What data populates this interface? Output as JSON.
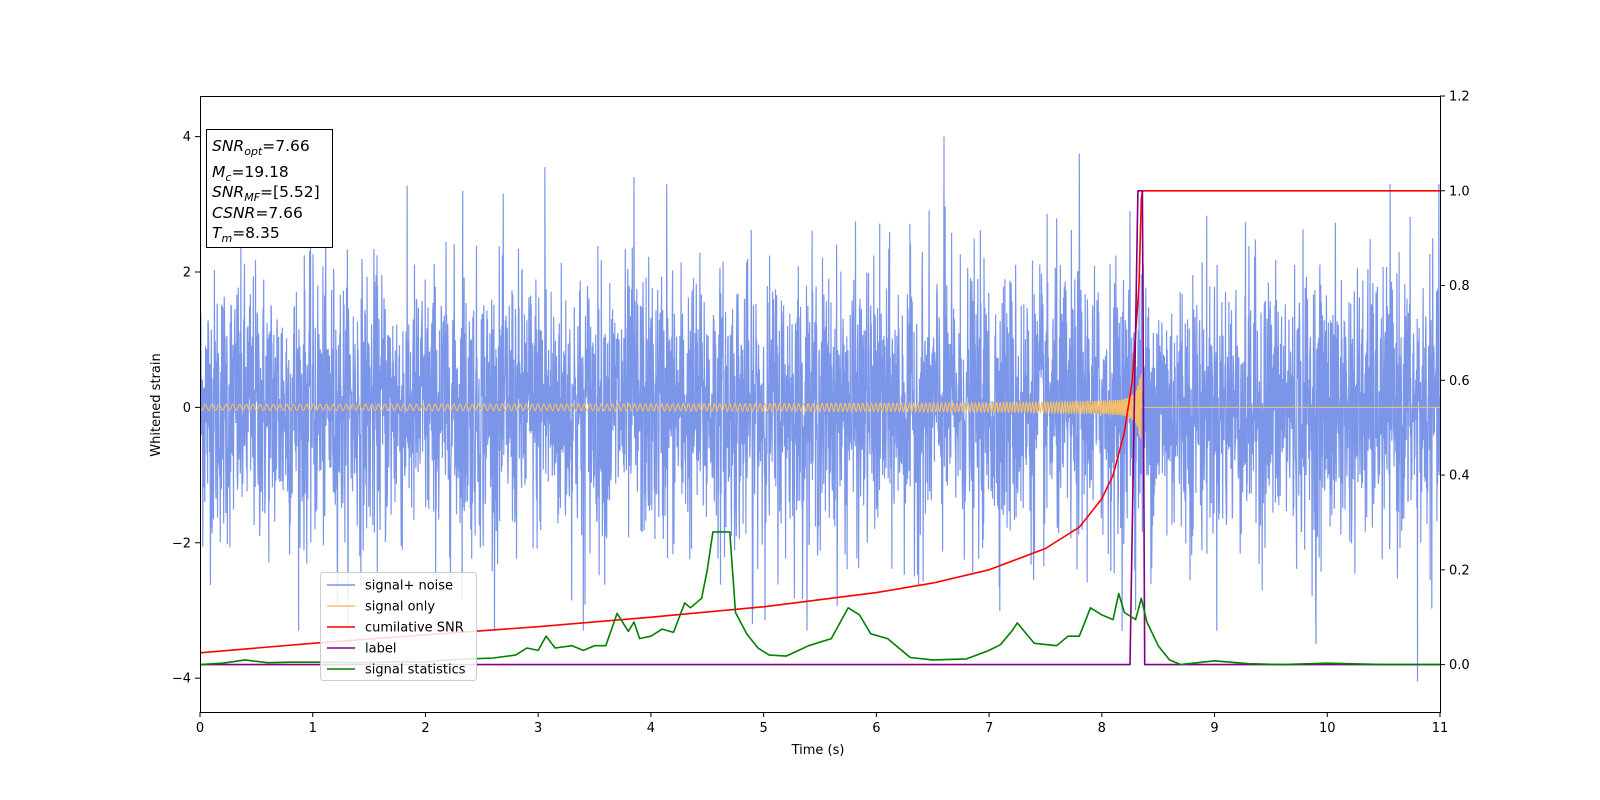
{
  "chart_data": {
    "type": "line",
    "title": "",
    "xlabel": "Time (s)",
    "ylabel": "Whitened strain",
    "xlim": [
      0,
      11
    ],
    "ylim": [
      -4.5,
      4.6
    ],
    "y2lim": [
      -0.1,
      1.2
    ],
    "xticks": [
      "0",
      "1",
      "2",
      "3",
      "4",
      "5",
      "6",
      "7",
      "8",
      "9",
      "10",
      "11"
    ],
    "yticks": [
      "4",
      "2",
      "0",
      "−2",
      "−4"
    ],
    "yticks_values": [
      4,
      2,
      0,
      -2,
      -4
    ],
    "y2ticks": [
      "1.2",
      "1.0",
      "0.8",
      "0.6",
      "0.4",
      "0.2",
      "0.0"
    ],
    "y2ticks_values": [
      1.2,
      1.0,
      0.8,
      0.6,
      0.4,
      0.2,
      0.0
    ],
    "grid": false,
    "legend_position": "lower left",
    "info_box": {
      "snr_opt_main": "SNR",
      "snr_opt_sub": "opt",
      "snr_opt_val": "=7.66",
      "mc_main": "M",
      "mc_sub": "c",
      "mc_val": "=19.18",
      "snr_mf_main": "SNR",
      "snr_mf_sub": "MF",
      "snr_mf_val": "=[5.52]",
      "csnr_main": "CSNR",
      "csnr_val": "=7.66",
      "tm_main": "T",
      "tm_sub": "m",
      "tm_val": "=8.35"
    },
    "noise_series": {
      "name": "signal+ noise",
      "color": "#7b96e8",
      "axis": "left",
      "description_values": {
        "approx_sigma": 1.0,
        "typical_range": [
          -3.0,
          3.0
        ],
        "min": -4.05,
        "max": 4.0
      },
      "spikes": [
        {
          "x": 3.06,
          "y": 3.55
        },
        {
          "x": 3.85,
          "y": 3.4
        },
        {
          "x": 4.14,
          "y": 3.3
        },
        {
          "x": 6.6,
          "y": 4.0
        },
        {
          "x": 7.8,
          "y": 3.75
        },
        {
          "x": 2.33,
          "y": 3.2
        },
        {
          "x": 3.4,
          "y": -3.3
        },
        {
          "x": 10.8,
          "y": -4.05
        },
        {
          "x": 9.9,
          "y": -3.5
        },
        {
          "x": 4.9,
          "y": -3.2
        },
        {
          "x": 8.25,
          "y": 2.9
        },
        {
          "x": 8.3,
          "y": -3.0
        }
      ]
    },
    "signal_series": {
      "name": "signal only",
      "color": "#f5bf6a",
      "axis": "left",
      "chirp_end_time": 8.35,
      "peak_amplitude": 0.5
    },
    "series": [
      {
        "name": "cumilative SNR",
        "color": "#ff0000",
        "axis": "right",
        "x": [
          0,
          1,
          2,
          3,
          4,
          5,
          6,
          6.5,
          7,
          7.5,
          7.8,
          8.0,
          8.1,
          8.2,
          8.27,
          8.33,
          8.35,
          8.36,
          11
        ],
        "y": [
          0.025,
          0.045,
          0.063,
          0.08,
          0.1,
          0.122,
          0.152,
          0.172,
          0.2,
          0.245,
          0.29,
          0.35,
          0.4,
          0.49,
          0.6,
          0.8,
          0.98,
          1.0,
          1.0
        ]
      },
      {
        "name": "label",
        "color": "#800080",
        "axis": "right",
        "x": [
          0,
          8.25,
          8.32,
          8.36,
          8.38,
          11
        ],
        "y": [
          0,
          0,
          1.0,
          1.0,
          0,
          0
        ]
      },
      {
        "name": "signal statistics",
        "color": "#008000",
        "axis": "right",
        "x": [
          0,
          0.2,
          0.4,
          0.6,
          0.8,
          1.0,
          1.2,
          1.4,
          1.6,
          1.8,
          2.0,
          2.2,
          2.4,
          2.6,
          2.8,
          2.9,
          3.0,
          3.07,
          3.15,
          3.3,
          3.4,
          3.5,
          3.6,
          3.7,
          3.8,
          3.85,
          3.9,
          4.0,
          4.1,
          4.2,
          4.3,
          4.35,
          4.45,
          4.5,
          4.55,
          4.6,
          4.65,
          4.7,
          4.75,
          4.85,
          4.95,
          5.05,
          5.2,
          5.4,
          5.6,
          5.75,
          5.85,
          5.95,
          6.1,
          6.3,
          6.5,
          6.8,
          7.0,
          7.1,
          7.2,
          7.25,
          7.4,
          7.6,
          7.7,
          7.8,
          7.9,
          8.0,
          8.1,
          8.15,
          8.2,
          8.3,
          8.35,
          8.4,
          8.5,
          8.6,
          8.7,
          9.0,
          9.3,
          9.6,
          10.0,
          10.5,
          11.0
        ],
        "y": [
          0.0,
          0.003,
          0.01,
          0.004,
          0.005,
          0.005,
          0.005,
          0.004,
          0.005,
          0.006,
          0.005,
          0.01,
          0.012,
          0.014,
          0.02,
          0.035,
          0.03,
          0.06,
          0.035,
          0.04,
          0.03,
          0.04,
          0.04,
          0.108,
          0.07,
          0.09,
          0.055,
          0.06,
          0.075,
          0.068,
          0.13,
          0.12,
          0.14,
          0.2,
          0.28,
          0.28,
          0.28,
          0.28,
          0.11,
          0.065,
          0.035,
          0.02,
          0.018,
          0.04,
          0.055,
          0.12,
          0.105,
          0.065,
          0.055,
          0.015,
          0.01,
          0.012,
          0.03,
          0.042,
          0.07,
          0.088,
          0.045,
          0.04,
          0.06,
          0.06,
          0.12,
          0.105,
          0.095,
          0.15,
          0.11,
          0.095,
          0.14,
          0.09,
          0.04,
          0.01,
          0.0,
          0.008,
          0.002,
          0.0,
          0.003,
          0.0,
          0.0
        ]
      }
    ],
    "legend": [
      {
        "label": "signal+ noise",
        "color": "#7b96e8"
      },
      {
        "label": "signal only",
        "color": "#f5bf6a"
      },
      {
        "label": "cumilative SNR",
        "color": "#ff0000"
      },
      {
        "label": "label",
        "color": "#800080"
      },
      {
        "label": "signal statistics",
        "color": "#008000"
      }
    ]
  }
}
